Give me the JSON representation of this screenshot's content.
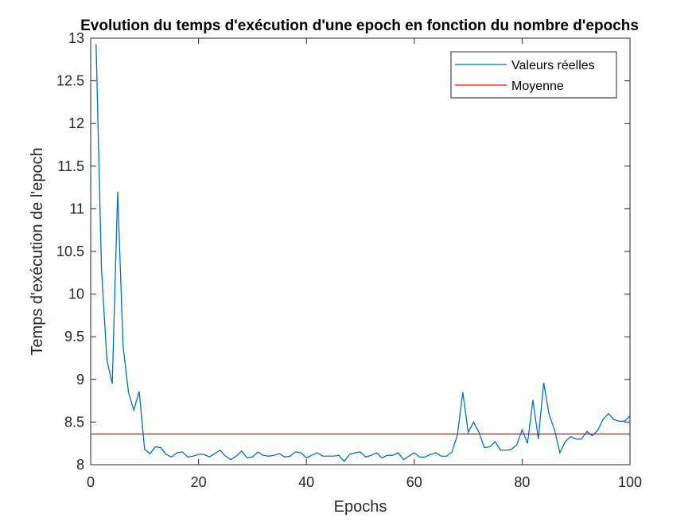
{
  "chart_data": {
    "type": "line",
    "title": "Evolution du temps d'exécution d'une epoch en fonction du nombre d'epochs",
    "xlabel": "Epochs",
    "ylabel": "Temps d'exécution de l'epoch",
    "xlim": [
      0,
      100
    ],
    "ylim": [
      8,
      13
    ],
    "xticks": [
      0,
      20,
      40,
      60,
      80,
      100
    ],
    "yticks": [
      8,
      8.5,
      9,
      9.5,
      10,
      10.5,
      11,
      11.5,
      12,
      12.5,
      13
    ],
    "grid": false,
    "legend_position": "top-right",
    "series": [
      {
        "name": "Valeurs réelles",
        "color": "#0072BD",
        "x": [
          1,
          2,
          3,
          4,
          5,
          6,
          7,
          8,
          9,
          10,
          11,
          12,
          13,
          14,
          15,
          16,
          17,
          18,
          19,
          20,
          21,
          22,
          23,
          24,
          25,
          26,
          27,
          28,
          29,
          30,
          31,
          32,
          33,
          34,
          35,
          36,
          37,
          38,
          39,
          40,
          41,
          42,
          43,
          44,
          45,
          46,
          47,
          48,
          49,
          50,
          51,
          52,
          53,
          54,
          55,
          56,
          57,
          58,
          59,
          60,
          61,
          62,
          63,
          64,
          65,
          66,
          67,
          68,
          69,
          70,
          71,
          72,
          73,
          74,
          75,
          76,
          77,
          78,
          79,
          80,
          81,
          82,
          83,
          84,
          85,
          86,
          87,
          88,
          89,
          90,
          91,
          92,
          93,
          94,
          95,
          96,
          97,
          98,
          99,
          100
        ],
        "y": [
          12.93,
          10.3,
          9.23,
          8.95,
          11.2,
          9.4,
          8.85,
          8.64,
          8.86,
          8.18,
          8.13,
          8.21,
          8.2,
          8.12,
          8.09,
          8.14,
          8.15,
          8.09,
          8.1,
          8.12,
          8.12,
          8.09,
          8.13,
          8.17,
          8.1,
          8.06,
          8.1,
          8.16,
          8.08,
          8.09,
          8.15,
          8.11,
          8.1,
          8.11,
          8.13,
          8.09,
          8.1,
          8.15,
          8.14,
          8.08,
          8.11,
          8.14,
          8.1,
          8.1,
          8.1,
          8.11,
          8.04,
          8.12,
          8.14,
          8.15,
          8.09,
          8.11,
          8.14,
          8.08,
          8.11,
          8.11,
          8.14,
          8.06,
          8.1,
          8.14,
          8.09,
          8.09,
          8.12,
          8.14,
          8.1,
          8.1,
          8.15,
          8.35,
          8.85,
          8.38,
          8.5,
          8.38,
          8.2,
          8.21,
          8.27,
          8.17,
          8.17,
          8.18,
          8.23,
          8.41,
          8.25,
          8.76,
          8.3,
          8.96,
          8.59,
          8.41,
          8.14,
          8.27,
          8.33,
          8.3,
          8.3,
          8.39,
          8.34,
          8.4,
          8.53,
          8.6,
          8.53,
          8.51,
          8.51,
          8.57
        ]
      },
      {
        "name": "Moyenne",
        "color": "#FF0000",
        "x": [
          0,
          100
        ],
        "y": [
          8.36,
          8.36
        ]
      }
    ]
  }
}
